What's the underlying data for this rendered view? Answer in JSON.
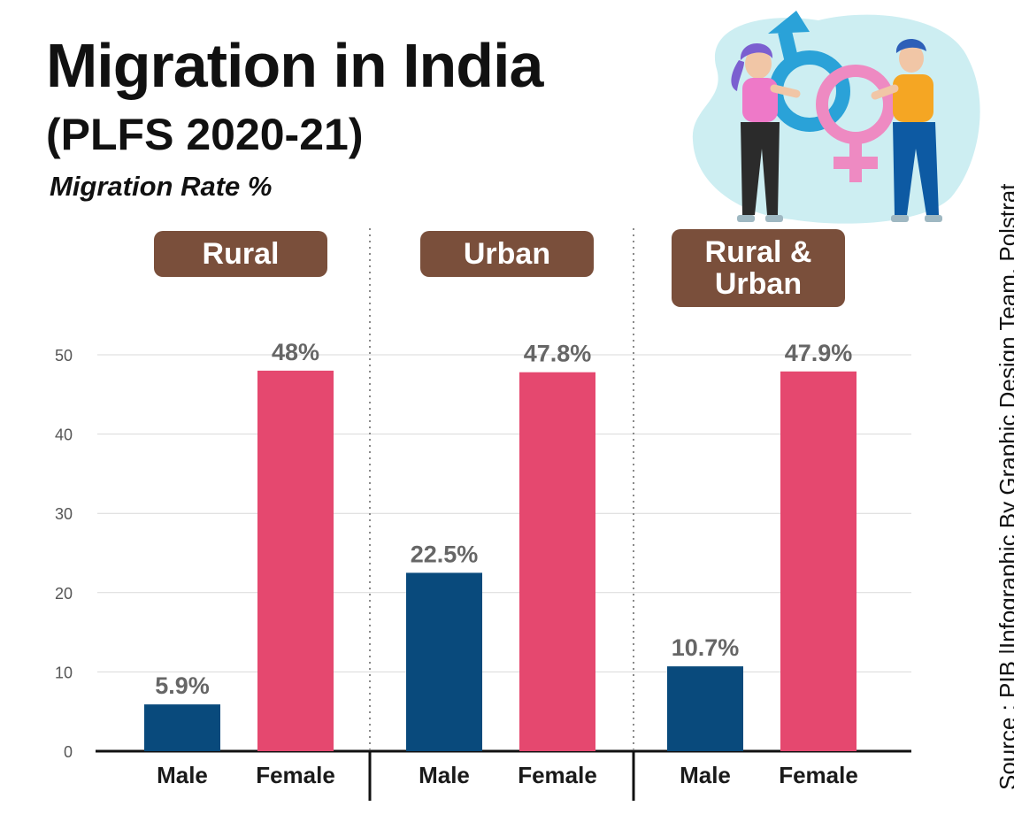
{
  "title": "Migration in India",
  "subtitle": "(PLFS 2020-21)",
  "unit_label": "Migration Rate %",
  "source": "Source : PIB |Infographic By Graphic Design Team, Polstrat",
  "illustration": {
    "icons": [
      "male-symbol-icon",
      "female-symbol-icon"
    ],
    "colors": {
      "blob": "#cdeef2",
      "male_symbol": "#2aa2d8",
      "female_symbol": "#ee8ac2"
    }
  },
  "groups": [
    {
      "label_lines": [
        "Rural"
      ]
    },
    {
      "label_lines": [
        "Urban"
      ]
    },
    {
      "label_lines": [
        "Rural &",
        "Urban"
      ]
    }
  ],
  "chart_data": {
    "type": "bar",
    "categories": [
      "Male",
      "Female",
      "Male",
      "Female",
      "Male",
      "Female"
    ],
    "groups": [
      "Rural",
      "Urban",
      "Rural & Urban"
    ],
    "values": [
      5.9,
      48,
      22.5,
      47.8,
      10.7,
      47.9
    ],
    "data_labels": [
      "5.9%",
      "48%",
      "22.5%",
      "47.8%",
      "10.7%",
      "47.9%"
    ],
    "y_ticks": [
      "0",
      "10",
      "20",
      "30",
      "40",
      "50"
    ],
    "ylim": [
      0,
      50
    ],
    "grid": true,
    "legend": "none",
    "colors": {
      "Male": "#094a7c",
      "Female": "#e5486f",
      "group_label_bg": "#7a4f3b"
    }
  }
}
